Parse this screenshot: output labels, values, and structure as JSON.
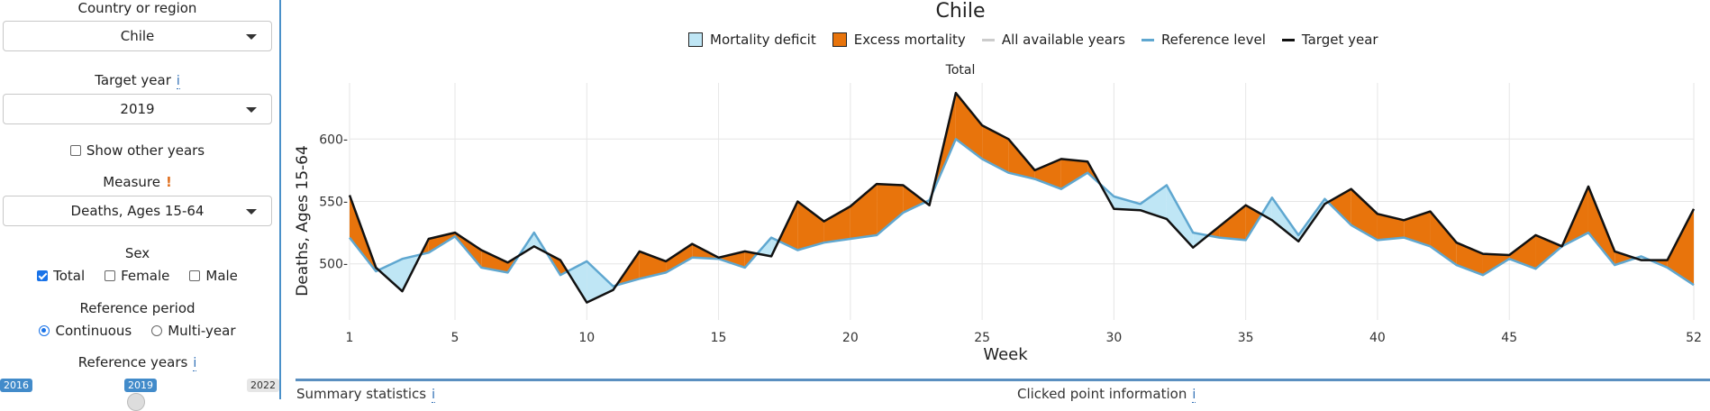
{
  "sidebar": {
    "country_label": "Country or region",
    "country_value": "Chile",
    "target_year_label": "Target year",
    "target_year_info": "i",
    "target_year_value": "2019",
    "show_other_years_label": "Show other years",
    "measure_label": "Measure",
    "measure_warn": "!",
    "measure_value": "Deaths, Ages 15-64",
    "sex_label": "Sex",
    "sex_total": "Total",
    "sex_female": "Female",
    "sex_male": "Male",
    "ref_period_label": "Reference period",
    "ref_continuous": "Continuous",
    "ref_multiyear": "Multi-year",
    "ref_years_label": "Reference years",
    "ref_years_info": "i",
    "slider_min": "2016",
    "slider_value": "2019",
    "slider_max": "2022"
  },
  "bottom": {
    "summary_label": "Summary statistics",
    "summary_info": "i",
    "clicked_label": "Clicked point information",
    "clicked_info": "i"
  },
  "colors": {
    "deficit": "#bfe6f5",
    "excess": "#e8740c",
    "reference": "#5fa7d0",
    "target": "#111111",
    "all_years": "#cccccc"
  },
  "chart_data": {
    "type": "line",
    "title": "Chile",
    "panel_title": "Total",
    "xlabel": "Week",
    "ylabel": "Deaths, Ages 15-64",
    "xlim": [
      1,
      52
    ],
    "ylim": [
      455,
      645
    ],
    "x_ticks": [
      1,
      5,
      10,
      15,
      20,
      25,
      30,
      35,
      40,
      45,
      52
    ],
    "y_ticks": [
      500,
      550,
      600
    ],
    "y_tick_labels": [
      "500",
      "550",
      "600"
    ],
    "grid": true,
    "legend": {
      "position": "top",
      "items": [
        "Mortality deficit",
        "Excess mortality",
        "All available years",
        "Reference level",
        "Target year"
      ]
    },
    "x": [
      1,
      2,
      3,
      4,
      5,
      6,
      7,
      8,
      9,
      10,
      11,
      12,
      13,
      14,
      15,
      16,
      17,
      18,
      19,
      20,
      21,
      22,
      23,
      24,
      25,
      26,
      27,
      28,
      29,
      30,
      31,
      32,
      33,
      34,
      35,
      36,
      37,
      38,
      39,
      40,
      41,
      42,
      43,
      44,
      45,
      46,
      47,
      48,
      49,
      50,
      51,
      52
    ],
    "series": [
      {
        "name": "Reference level",
        "values": [
          521,
          494,
          504,
          509,
          522,
          497,
          493,
          525,
          491,
          502,
          482,
          488,
          493,
          505,
          504,
          497,
          521,
          511,
          517,
          520,
          523,
          541,
          551,
          600,
          584,
          573,
          568,
          560,
          573,
          554,
          548,
          563,
          525,
          521,
          519,
          553,
          523,
          552,
          531,
          519,
          521,
          514,
          499,
          491,
          504,
          496,
          514,
          525,
          499,
          506,
          497,
          483
        ]
      },
      {
        "name": "Target year",
        "values": [
          555,
          497,
          478,
          520,
          525,
          511,
          501,
          514,
          503,
          469,
          479,
          510,
          502,
          516,
          505,
          510,
          506,
          550,
          534,
          546,
          564,
          563,
          547,
          637,
          611,
          600,
          575,
          584,
          582,
          544,
          543,
          536,
          513,
          530,
          547,
          535,
          518,
          548,
          560,
          540,
          535,
          542,
          517,
          508,
          507,
          523,
          514,
          562,
          510,
          503,
          503,
          544
        ]
      }
    ]
  }
}
